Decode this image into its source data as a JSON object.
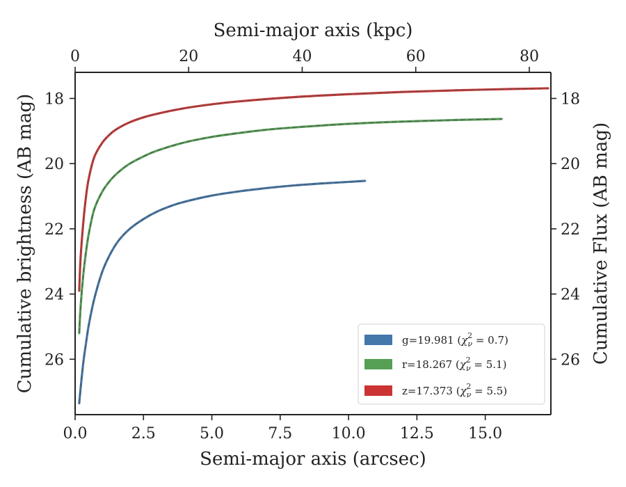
{
  "chart_data": {
    "type": "line",
    "xlabel": "Semi-major axis (arcsec)",
    "x2label": "Semi-major axis (kpc)",
    "ylabel": "Cumulative brightness (AB mag)",
    "y2label": "Cumulative Flux (AB mag)",
    "xlim": [
      0,
      17.4
    ],
    "ylim": [
      27.7,
      17.2
    ],
    "y_inverted": true,
    "x2lim": [
      0,
      83.8
    ],
    "xticks": [
      "0.0",
      "2.5",
      "5.0",
      "7.5",
      "10.0",
      "12.5",
      "15.0"
    ],
    "xtick_values": [
      0,
      2.5,
      5,
      7.5,
      10,
      12.5,
      15
    ],
    "x2ticks": [
      "0",
      "20",
      "40",
      "60",
      "80"
    ],
    "x2tick_values": [
      0,
      20,
      40,
      60,
      80
    ],
    "yticks": [
      "18",
      "20",
      "22",
      "24",
      "26"
    ],
    "ytick_values": [
      18,
      20,
      22,
      24,
      26
    ],
    "legend_position": "lower-right",
    "grid": false,
    "series": [
      {
        "name": "g=19.981 ($\\chi^2_\\nu = 0.7$)",
        "color": "#4477aa",
        "x": [
          0.15,
          0.2,
          0.3,
          0.4,
          0.5,
          0.7,
          1.0,
          1.3,
          1.6,
          2.0,
          2.5,
          3.0,
          3.5,
          4.0,
          5.0,
          6.0,
          7.0,
          8.0,
          9.0,
          10.0,
          10.6
        ],
        "y": [
          27.35,
          26.9,
          26.1,
          25.5,
          24.95,
          24.15,
          23.3,
          22.75,
          22.35,
          22.0,
          21.7,
          21.47,
          21.3,
          21.17,
          20.98,
          20.85,
          20.75,
          20.67,
          20.61,
          20.56,
          20.53
        ]
      },
      {
        "name": "r=18.267 ($\\chi^2_\\nu = 5.1$)",
        "color": "#55a055",
        "x": [
          0.15,
          0.2,
          0.3,
          0.4,
          0.5,
          0.7,
          1.0,
          1.3,
          1.6,
          2.0,
          2.5,
          3.0,
          4.0,
          5.0,
          6.0,
          7.0,
          8.0,
          10.0,
          12.0,
          14.0,
          15.6
        ],
        "y": [
          25.2,
          24.4,
          23.4,
          22.7,
          22.15,
          21.4,
          20.85,
          20.5,
          20.25,
          20.0,
          19.78,
          19.6,
          19.35,
          19.18,
          19.06,
          18.96,
          18.89,
          18.78,
          18.71,
          18.66,
          18.63
        ]
      },
      {
        "name": "z=17.373 ($\\chi^2_\\nu = 5.5$)",
        "color": "#cc3333",
        "x": [
          0.15,
          0.2,
          0.3,
          0.4,
          0.5,
          0.7,
          1.0,
          1.3,
          1.6,
          2.0,
          2.5,
          3.0,
          4.0,
          5.0,
          6.0,
          8.0,
          10.0,
          12.0,
          14.0,
          16.0,
          17.3
        ],
        "y": [
          23.9,
          22.9,
          21.8,
          21.0,
          20.45,
          19.8,
          19.35,
          19.08,
          18.9,
          18.73,
          18.58,
          18.47,
          18.3,
          18.18,
          18.09,
          17.96,
          17.87,
          17.8,
          17.75,
          17.71,
          17.69
        ]
      }
    ]
  },
  "legend": {
    "items": [
      {
        "prefix": "g=19.981 (",
        "chi": "χ",
        "sub": "ν",
        "sup": "2",
        "suffix": " = 0.7)"
      },
      {
        "prefix": "r=18.267 (",
        "chi": "χ",
        "sub": "ν",
        "sup": "2",
        "suffix": " = 5.1)"
      },
      {
        "prefix": "z=17.373 (",
        "chi": "χ",
        "sub": "ν",
        "sup": "2",
        "suffix": " = 5.5)"
      }
    ]
  },
  "colors": {
    "axis": "#222222",
    "model_dash": "#555555"
  }
}
